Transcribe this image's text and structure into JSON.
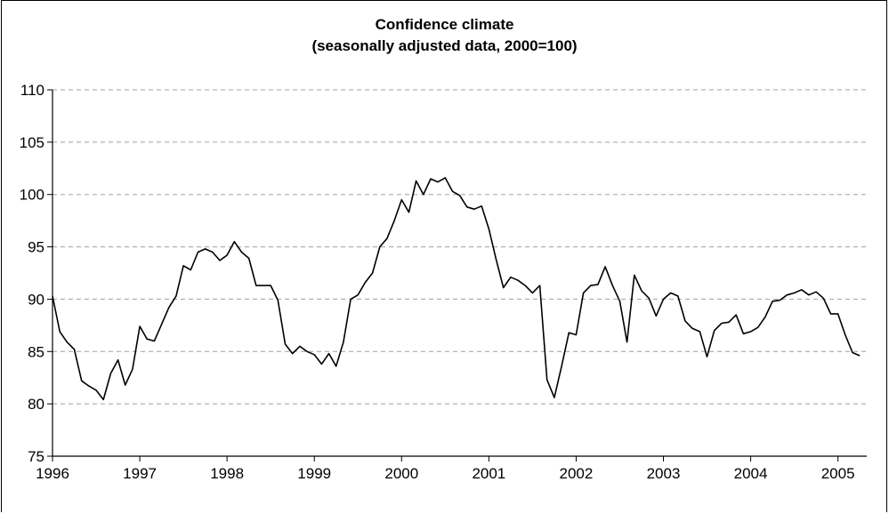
{
  "chart_data": {
    "type": "line",
    "title": "Confidence climate",
    "subtitle": "(seasonally adjusted data, 2000=100)",
    "xlabel": "",
    "ylabel": "",
    "ylim": [
      75,
      110
    ],
    "xlim": [
      1996,
      2005.33
    ],
    "y_ticks": [
      75,
      80,
      85,
      90,
      95,
      100,
      105,
      110
    ],
    "x_ticks": [
      "1996",
      "1997",
      "1998",
      "1999",
      "2000",
      "2001",
      "2002",
      "2003",
      "2004",
      "2005"
    ],
    "grid": "horizontal dashed",
    "legend": "none",
    "line_color": "#000000",
    "grid_color": "#a0a0a0",
    "series": [
      {
        "x_start": 1996,
        "x_step_months": 1,
        "values": [
          90.3,
          86.9,
          85.9,
          85.2,
          82.2,
          81.7,
          81.3,
          80.4,
          82.9,
          84.2,
          81.8,
          83.3,
          87.4,
          86.2,
          86.0,
          87.6,
          89.2,
          90.3,
          93.2,
          92.8,
          94.5,
          94.8,
          94.5,
          93.7,
          94.2,
          95.5,
          94.5,
          93.9,
          91.3,
          91.3,
          91.3,
          89.9,
          85.7,
          84.8,
          85.5,
          85.0,
          84.7,
          83.8,
          84.8,
          83.6,
          85.9,
          90.0,
          90.4,
          91.6,
          92.5,
          95.0,
          95.8,
          97.5,
          99.5,
          98.3,
          101.3,
          100.0,
          101.5,
          101.2,
          101.6,
          100.3,
          99.9,
          98.8,
          98.6,
          98.9,
          96.7,
          93.8,
          91.1,
          92.1,
          91.8,
          91.3,
          90.6,
          91.3,
          82.3,
          80.6,
          83.6,
          86.8,
          86.6,
          90.6,
          91.3,
          91.4,
          93.1,
          91.3,
          89.8,
          85.9,
          92.3,
          90.8,
          90.1,
          88.4,
          90.0,
          90.6,
          90.3,
          87.9,
          87.2,
          86.9,
          84.5,
          87.0,
          87.7,
          87.8,
          88.5,
          86.7,
          86.9,
          87.3,
          88.3,
          89.8,
          89.9,
          90.4,
          90.6,
          90.9,
          90.4,
          90.7,
          90.1,
          88.6,
          88.6,
          86.6,
          84.9,
          84.6
        ]
      }
    ]
  }
}
